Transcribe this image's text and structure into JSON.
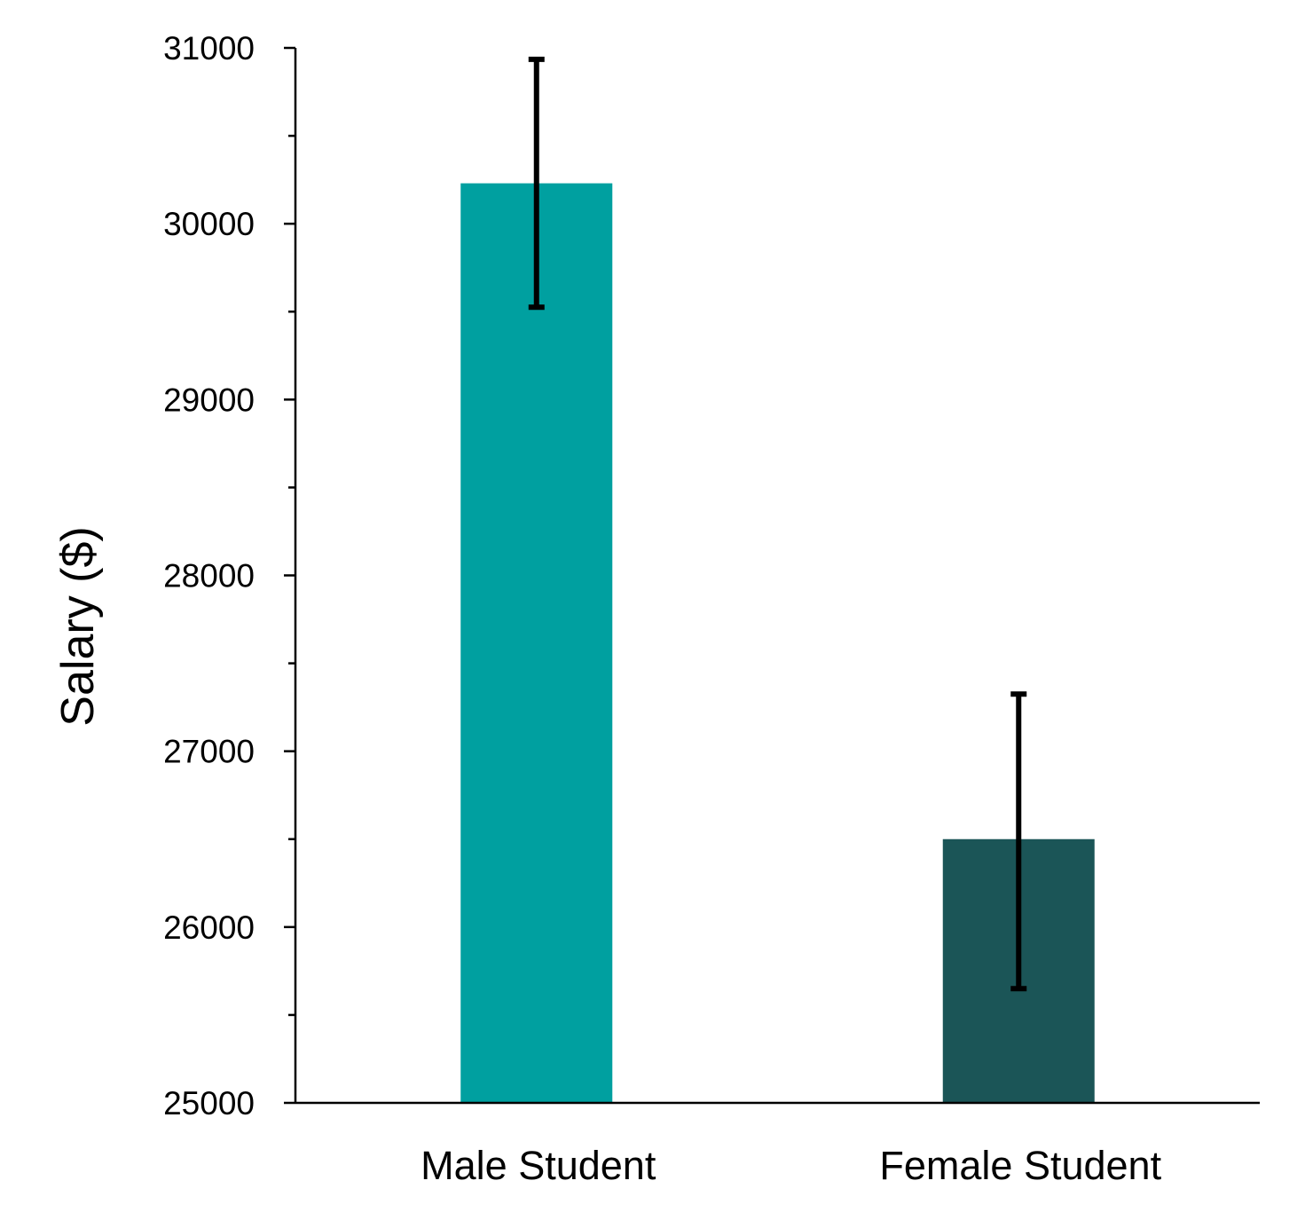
{
  "chart_data": {
    "type": "bar",
    "title": "",
    "xlabel": "",
    "ylabel": "Salary ($)",
    "categories": [
      "Male Student",
      "Female Student"
    ],
    "values": [
      30230,
      26500
    ],
    "error_bars": [
      {
        "lower": 29525,
        "upper": 30935
      },
      {
        "lower": 25650,
        "upper": 27325
      }
    ],
    "colors": [
      "#00A0A0",
      "#1B5557"
    ],
    "ylim": [
      25000,
      31000
    ],
    "yticks": [
      "25000",
      "26000",
      "27000",
      "28000",
      "29000",
      "30000",
      "31000"
    ],
    "grid": false,
    "legend": "none"
  }
}
